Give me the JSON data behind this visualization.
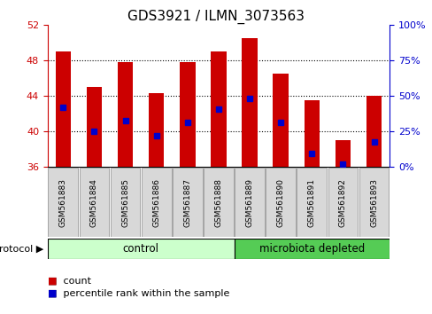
{
  "title": "GDS3921 / ILMN_3073563",
  "samples": [
    "GSM561883",
    "GSM561884",
    "GSM561885",
    "GSM561886",
    "GSM561887",
    "GSM561888",
    "GSM561889",
    "GSM561890",
    "GSM561891",
    "GSM561892",
    "GSM561893"
  ],
  "bar_tops": [
    49.0,
    45.0,
    47.8,
    44.3,
    47.8,
    49.0,
    50.5,
    46.5,
    43.5,
    39.0,
    44.0
  ],
  "blue_vals": [
    42.7,
    40.0,
    41.2,
    39.5,
    41.0,
    42.5,
    43.7,
    41.0,
    37.5,
    36.3,
    38.8
  ],
  "bar_bottom": 36.0,
  "ylim": [
    36.0,
    52.0
  ],
  "yticks": [
    36,
    40,
    44,
    48,
    52
  ],
  "right_yticks_pct": [
    0,
    25,
    50,
    75,
    100
  ],
  "bar_color": "#cc0000",
  "blue_color": "#0000cc",
  "control_color": "#ccffcc",
  "microbiota_color": "#55cc55",
  "control_n": 6,
  "microbiota_n": 5,
  "control_label": "control",
  "microbiota_label": "microbiota depleted",
  "protocol_label": "protocol",
  "legend_count": "count",
  "legend_percentile": "percentile rank within the sample",
  "bar_width": 0.5,
  "title_fontsize": 11,
  "tick_fontsize": 8,
  "axis_label_color_left": "#cc0000",
  "axis_label_color_right": "#0000cc"
}
